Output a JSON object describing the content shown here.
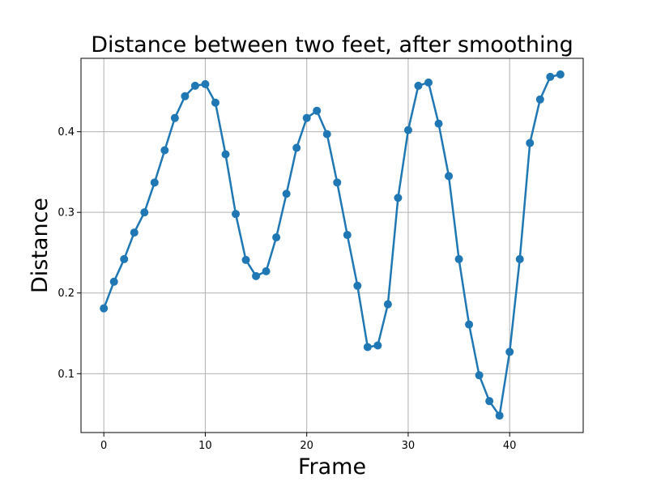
{
  "chart_data": {
    "type": "line",
    "title": "Distance between two feet, after smoothing",
    "xlabel": "Frame",
    "ylabel": "Distance",
    "xlim": [
      -2.25,
      47.25
    ],
    "ylim": [
      0.027,
      0.491
    ],
    "xticks": [
      0,
      10,
      20,
      30,
      40
    ],
    "yticks": [
      0.1,
      0.2,
      0.3,
      0.4
    ],
    "xtick_labels": [
      "0",
      "10",
      "20",
      "30",
      "40"
    ],
    "ytick_labels": [
      "0.1",
      "0.2",
      "0.3",
      "0.4"
    ],
    "grid": true,
    "color": "#1f77b4",
    "series": [
      {
        "x": [
          0,
          1,
          2,
          3,
          4,
          5,
          6,
          7,
          8,
          9,
          10,
          11,
          12,
          13,
          14,
          15,
          16,
          17,
          18,
          19,
          20,
          21,
          22,
          23,
          24,
          25,
          26,
          27,
          28,
          29,
          30,
          31,
          32,
          33,
          34,
          35,
          36,
          37,
          38,
          39,
          40,
          41,
          42,
          43,
          44,
          45
        ],
        "y": [
          0.181,
          0.214,
          0.242,
          0.275,
          0.3,
          0.337,
          0.377,
          0.417,
          0.444,
          0.457,
          0.459,
          0.436,
          0.372,
          0.298,
          0.241,
          0.221,
          0.227,
          0.269,
          0.323,
          0.38,
          0.417,
          0.426,
          0.397,
          0.337,
          0.272,
          0.209,
          0.133,
          0.135,
          0.186,
          0.318,
          0.402,
          0.457,
          0.461,
          0.41,
          0.345,
          0.242,
          0.161,
          0.098,
          0.066,
          0.048,
          0.127,
          0.242,
          0.386,
          0.44,
          0.468,
          0.471
        ]
      }
    ]
  }
}
